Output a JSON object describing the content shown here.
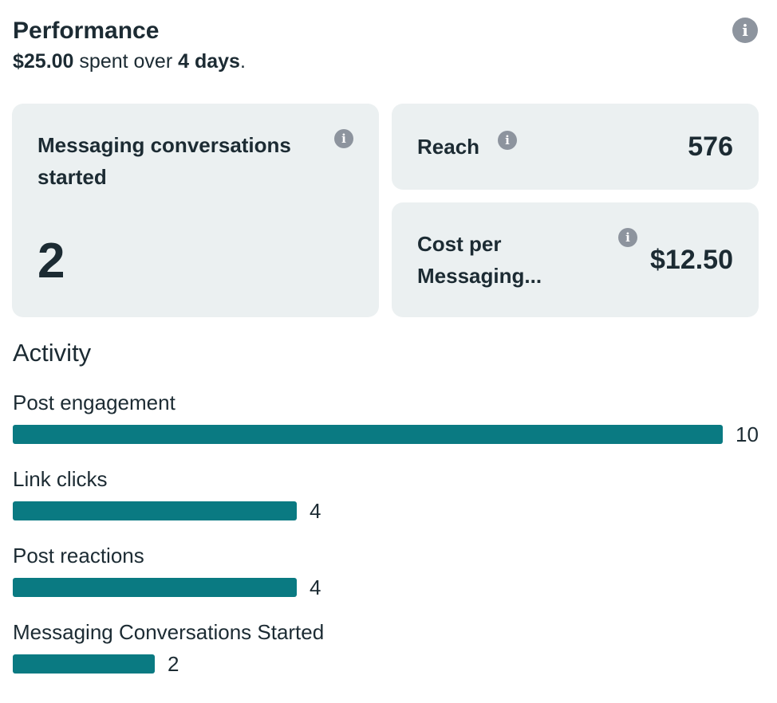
{
  "performance": {
    "title": "Performance",
    "spent": "$25.00",
    "spent_text": " spent over ",
    "days": "4 days",
    "period": "."
  },
  "cards": {
    "messaging": {
      "label": "Messaging conversations started",
      "value": "2"
    },
    "reach": {
      "label": "Reach",
      "value": "576"
    },
    "cost_per": {
      "label": "Cost per Messaging...",
      "value": "$12.50"
    }
  },
  "activity": {
    "title": "Activity",
    "max_value": 10,
    "items": [
      {
        "label": "Post engagement",
        "value": 10,
        "count": "10"
      },
      {
        "label": "Link clicks",
        "value": 4,
        "count": "4"
      },
      {
        "label": "Post reactions",
        "value": 4,
        "count": "4"
      },
      {
        "label": "Messaging Conversations Started",
        "value": 2,
        "count": "2"
      }
    ]
  },
  "icons": {
    "info": "info-icon"
  },
  "colors": {
    "bar": "#0a7a82",
    "card_bg": "#ebf0f1",
    "text": "#1c2b33",
    "icon": "#8d949e"
  }
}
